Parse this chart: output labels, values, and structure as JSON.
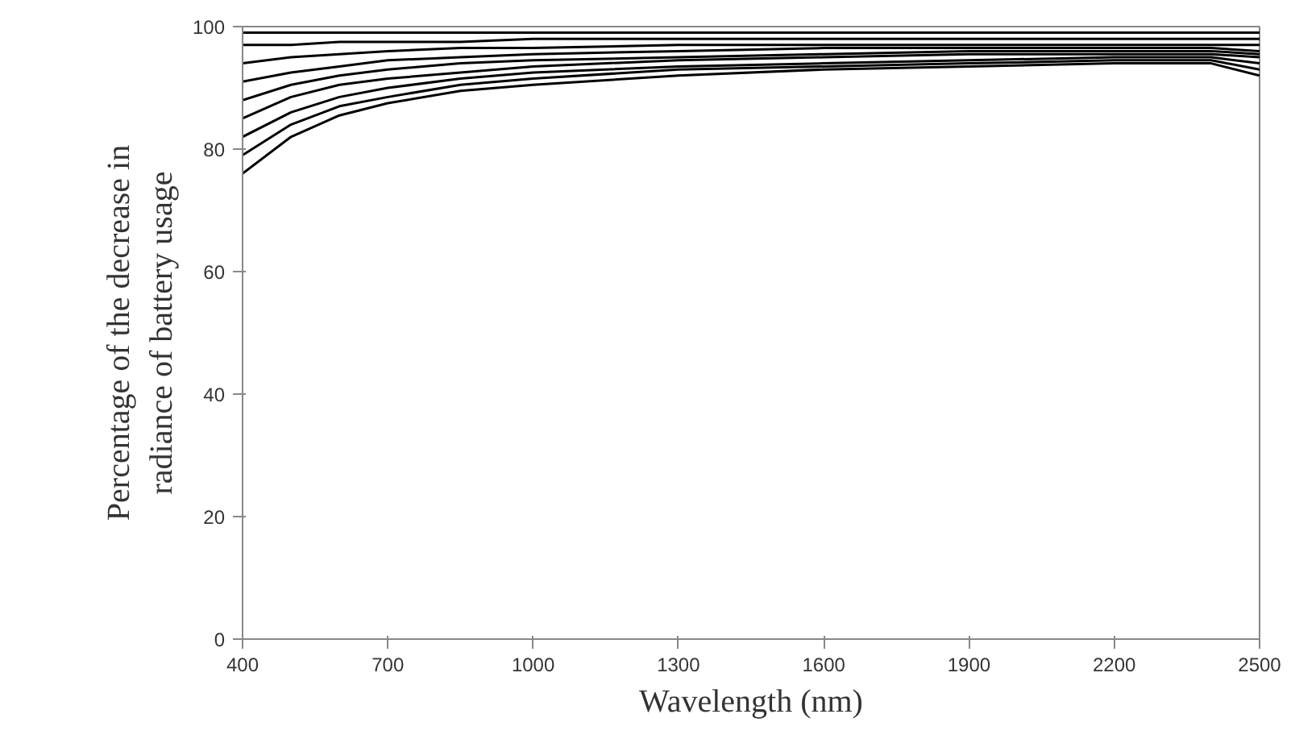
{
  "chart_data": {
    "type": "line",
    "xlabel": "Wavelength (nm)",
    "ylabel": "Percentage of the decrease in\nradiance of battery usage",
    "x": [
      400,
      500,
      600,
      700,
      850,
      1000,
      1300,
      1600,
      1900,
      2200,
      2400,
      2500
    ],
    "series": [
      {
        "color": "#000000",
        "values": [
          76,
          82,
          85.5,
          87.5,
          89.5,
          90.5,
          92,
          93,
          93.5,
          94,
          94,
          92
        ]
      },
      {
        "color": "#000000",
        "values": [
          79,
          84,
          87,
          88.5,
          90.5,
          91.5,
          93,
          93.5,
          94,
          94.5,
          94.5,
          93
        ]
      },
      {
        "color": "#000000",
        "values": [
          82,
          86,
          88.5,
          90,
          91.5,
          92.5,
          93.5,
          94,
          94.5,
          95,
          95,
          94
        ]
      },
      {
        "color": "#000000",
        "values": [
          85,
          88.5,
          90.5,
          91.5,
          92.5,
          93.5,
          94.5,
          95,
          95.5,
          95.5,
          95.5,
          95
        ]
      },
      {
        "color": "#000000",
        "values": [
          88,
          90.5,
          92,
          93,
          94,
          94.5,
          95,
          95.5,
          96,
          96,
          96,
          95.5
        ]
      },
      {
        "color": "#000000",
        "values": [
          91,
          92.5,
          93.5,
          94.5,
          95,
          95.5,
          96,
          96.5,
          96.5,
          96.5,
          96.5,
          96
        ]
      },
      {
        "color": "#000000",
        "values": [
          94,
          95,
          95.5,
          96,
          96.5,
          96.5,
          97,
          97,
          97,
          97,
          97,
          97
        ]
      },
      {
        "color": "#000000",
        "values": [
          97,
          97,
          97.5,
          97.5,
          97.5,
          98,
          98,
          98,
          98,
          98,
          98,
          98
        ]
      },
      {
        "color": "#000000",
        "values": [
          99,
          99,
          99,
          99,
          99,
          99,
          99,
          99,
          99,
          99,
          99,
          99
        ]
      }
    ],
    "xlim": [
      400,
      2500
    ],
    "ylim": [
      0,
      100
    ],
    "xticks": [
      400,
      700,
      1000,
      1300,
      1600,
      1900,
      2200,
      2500
    ],
    "yticks": [
      0,
      20,
      40,
      60,
      80,
      100
    ],
    "grid": false,
    "marker": "none",
    "line_style": "solid"
  }
}
